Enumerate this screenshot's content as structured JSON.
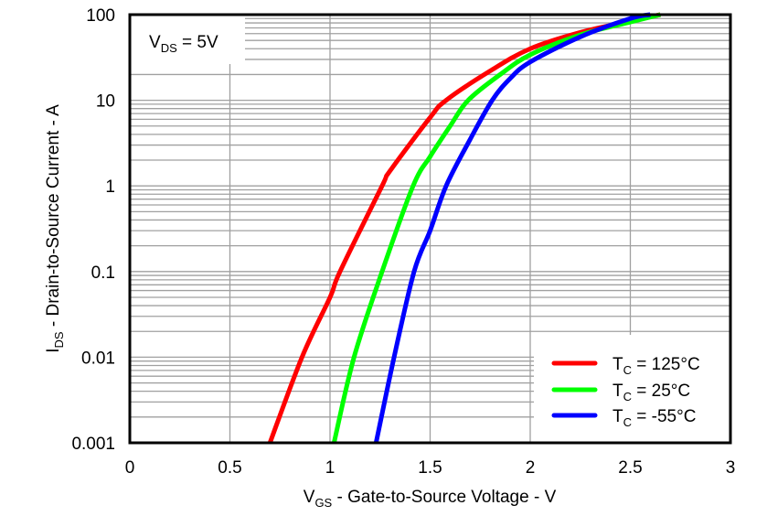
{
  "chart_data": {
    "type": "line",
    "xlabel": {
      "main": "V",
      "sub": "GS",
      "rest": " - Gate-to-Source Voltage - V"
    },
    "ylabel": {
      "main": "I",
      "sub": "DS",
      "rest": " - Drain-to-Source Current - A"
    },
    "annotation": {
      "main": "V",
      "sub": "DS",
      "rest": " = 5V"
    },
    "xlim": [
      0,
      3
    ],
    "ylim": [
      0.001,
      100
    ],
    "yscale": "log",
    "grid": true,
    "legend_position": "bottom-right",
    "xticks": [
      "0",
      "0.5",
      "1",
      "1.5",
      "2",
      "2.5",
      "3"
    ],
    "xtick_values": [
      0,
      0.5,
      1,
      1.5,
      2,
      2.5,
      3
    ],
    "yticks": [
      "0.001",
      "0.01",
      "0.1",
      "1",
      "10",
      "100"
    ],
    "ytick_values": [
      0.001,
      0.01,
      0.1,
      1,
      10,
      100
    ],
    "series": [
      {
        "name": {
          "main": "T",
          "sub": "C",
          "rest": " = 125°C"
        },
        "color": "#ff0000",
        "x": [
          0.7,
          0.86,
          1.0,
          1.05,
          1.26,
          1.3,
          1.5,
          1.58,
          1.8,
          2.0,
          2.25,
          2.5,
          2.65
        ],
        "y": [
          0.001,
          0.01,
          0.05,
          0.1,
          1,
          1.5,
          6.3,
          10,
          22,
          40,
          62,
          84,
          100
        ]
      },
      {
        "name": {
          "main": "T",
          "sub": "C",
          "rest": " = 25°C"
        },
        "color": "#00ff00",
        "x": [
          1.02,
          1.12,
          1.26,
          1.415,
          1.5,
          1.6,
          1.69,
          1.85,
          2.0,
          2.25,
          2.5,
          2.65
        ],
        "y": [
          0.001,
          0.01,
          0.1,
          1,
          2.2,
          5,
          10,
          20,
          34,
          58,
          82,
          100
        ]
      },
      {
        "name": {
          "main": "T",
          "sub": "C",
          "rest": " = -55°C"
        },
        "color": "#0000ff",
        "x": [
          1.23,
          1.32,
          1.42,
          1.5,
          1.58,
          1.7,
          1.81,
          1.9,
          2.0,
          2.25,
          2.5,
          2.6
        ],
        "y": [
          0.001,
          0.01,
          0.1,
          0.3,
          1,
          3.5,
          10,
          18,
          28,
          55,
          90,
          100
        ]
      }
    ]
  }
}
